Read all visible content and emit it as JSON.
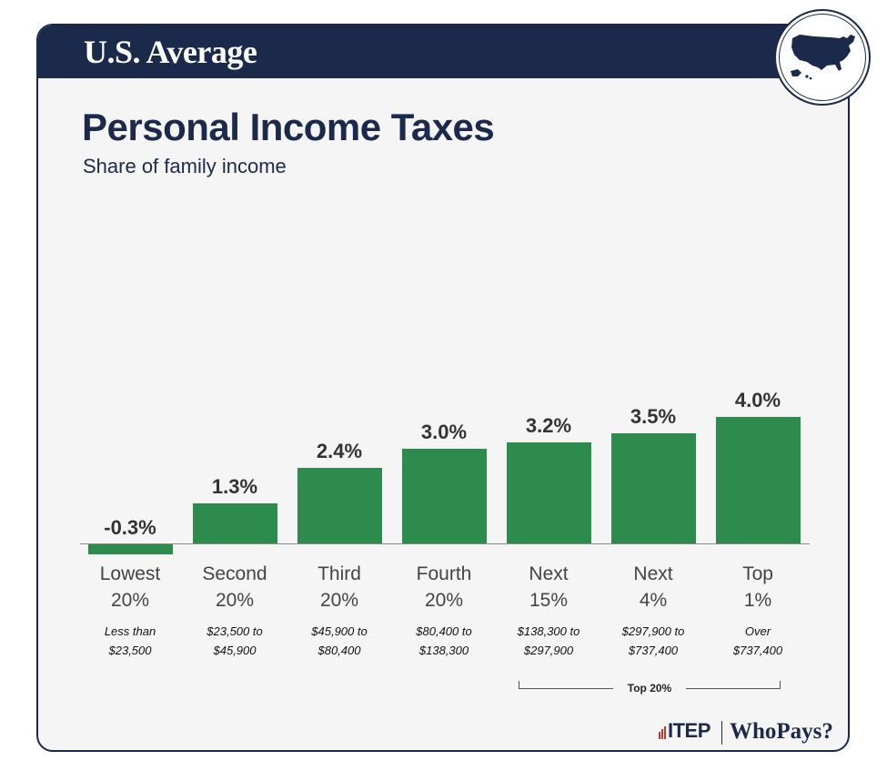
{
  "header": {
    "region": "U.S. Average"
  },
  "badge": {
    "icon": "us-map-icon"
  },
  "chart_data": {
    "type": "bar",
    "title": "Personal Income Taxes",
    "subtitle": "Share of family income",
    "categories": [
      {
        "group": "Lowest",
        "pct": "20%",
        "range1": "Less than",
        "range2": "$23,500"
      },
      {
        "group": "Second",
        "pct": "20%",
        "range1": "$23,500 to",
        "range2": "$45,900"
      },
      {
        "group": "Third",
        "pct": "20%",
        "range1": "$45,900 to",
        "range2": "$80,400"
      },
      {
        "group": "Fourth",
        "pct": "20%",
        "range1": "$80,400 to",
        "range2": "$138,300"
      },
      {
        "group": "Next",
        "pct": "15%",
        "range1": "$138,300 to",
        "range2": "$297,900"
      },
      {
        "group": "Next",
        "pct": "4%",
        "range1": "$297,900 to",
        "range2": "$737,400"
      },
      {
        "group": "Top",
        "pct": "1%",
        "range1": "Over",
        "range2": "$737,400"
      }
    ],
    "values": [
      -0.3,
      1.3,
      2.4,
      3.0,
      3.2,
      3.5,
      4.0
    ],
    "value_labels": [
      "-0.3%",
      "1.3%",
      "2.4%",
      "3.0%",
      "3.2%",
      "3.5%",
      "4.0%"
    ],
    "bracket_label": "Top 20%",
    "bar_color": "#2e8b4e",
    "grid": false
  },
  "footer": {
    "logo_itep": "ITEP",
    "logo_whopays": "WhoPays?"
  },
  "colors": {
    "navy": "#1b2a4a",
    "green": "#2e8b4e",
    "background": "#f5f5f5"
  }
}
